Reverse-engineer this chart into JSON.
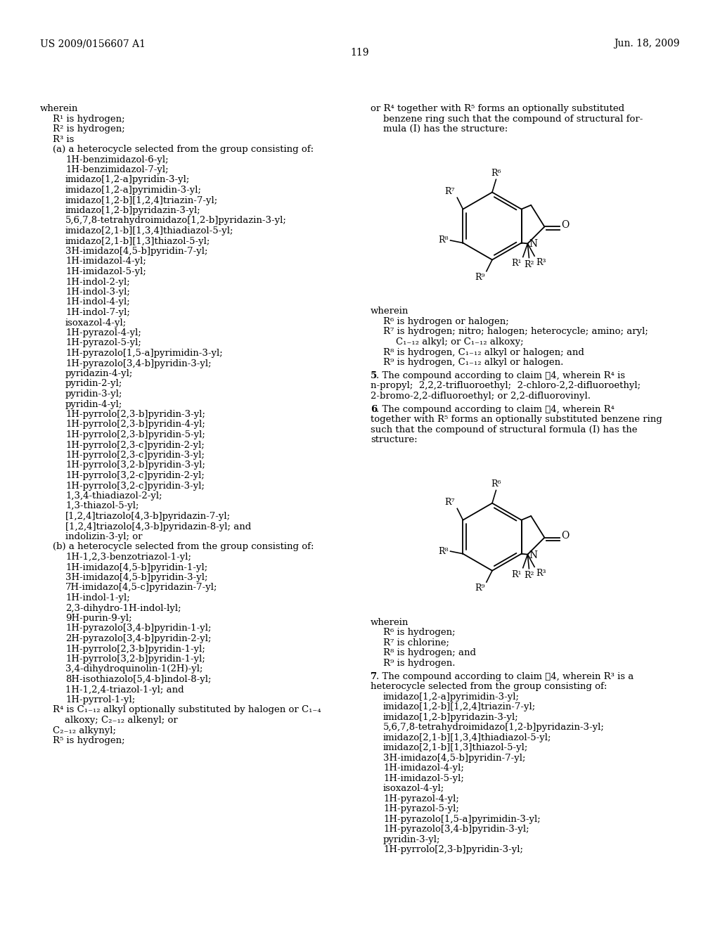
{
  "header_left": "US 2009/0156607 A1",
  "header_right": "Jun. 18, 2009",
  "page_number": "119",
  "bg_color": "#ffffff",
  "text_color": "#000000",
  "left_lines": [
    [
      "wherein",
      0
    ],
    [
      "R¹ is hydrogen;",
      1
    ],
    [
      "R² is hydrogen;",
      1
    ],
    [
      "R³ is",
      1
    ],
    [
      "(a) a heterocycle selected from the group consisting of:",
      1
    ],
    [
      "1H-benzimidazol-6-yl;",
      2
    ],
    [
      "1H-benzimidazol-7-yl;",
      2
    ],
    [
      "imidazo[1,2-a]pyridin-3-yl;",
      2
    ],
    [
      "imidazo[1,2-a]pyrimidin-3-yl;",
      2
    ],
    [
      "imidazo[1,2-b][1,2,4]triazin-7-yl;",
      2
    ],
    [
      "imidazo[1,2-b]pyridazin-3-yl;",
      2
    ],
    [
      "5,6,7,8-tetrahydroimidazo[1,2-b]pyridazin-3-yl;",
      2
    ],
    [
      "imidazo[2,1-b][1,3,4]thiadiazol-5-yl;",
      2
    ],
    [
      "imidazo[2,1-b][1,3]thiazol-5-yl;",
      2
    ],
    [
      "3H-imidazo[4,5-b]pyridin-7-yl;",
      2
    ],
    [
      "1H-imidazol-4-yl;",
      2
    ],
    [
      "1H-imidazol-5-yl;",
      2
    ],
    [
      "1H-indol-2-yl;",
      2
    ],
    [
      "1H-indol-3-yl;",
      2
    ],
    [
      "1H-indol-4-yl;",
      2
    ],
    [
      "1H-indol-7-yl;",
      2
    ],
    [
      "isoxazol-4-yl;",
      2
    ],
    [
      "1H-pyrazol-4-yl;",
      2
    ],
    [
      "1H-pyrazol-5-yl;",
      2
    ],
    [
      "1H-pyrazolo[1,5-a]pyrimidin-3-yl;",
      2
    ],
    [
      "1H-pyrazolo[3,4-b]pyridin-3-yl;",
      2
    ],
    [
      "pyridazin-4-yl;",
      2
    ],
    [
      "pyridin-2-yl;",
      2
    ],
    [
      "pyridin-3-yl;",
      2
    ],
    [
      "pyridin-4-yl;",
      2
    ],
    [
      "1H-pyrrolo[2,3-b]pyridin-3-yl;",
      2
    ],
    [
      "1H-pyrrolo[2,3-b]pyridin-4-yl;",
      2
    ],
    [
      "1H-pyrrolo[2,3-b]pyridin-5-yl;",
      2
    ],
    [
      "1H-pyrrolo[2,3-c]pyridin-2-yl;",
      2
    ],
    [
      "1H-pyrrolo[2,3-c]pyridin-3-yl;",
      2
    ],
    [
      "1H-pyrrolo[3,2-b]pyridin-3-yl;",
      2
    ],
    [
      "1H-pyrrolo[3,2-c]pyridin-2-yl;",
      2
    ],
    [
      "1H-pyrrolo[3,2-c]pyridin-3-yl;",
      2
    ],
    [
      "1,3,4-thiadiazol-2-yl;",
      2
    ],
    [
      "1,3-thiazol-5-yl;",
      2
    ],
    [
      "[1,2,4]triazolo[4,3-b]pyridazin-7-yl;",
      2
    ],
    [
      "[1,2,4]triazolo[4,3-b]pyridazin-8-yl; and",
      2
    ],
    [
      "indolizin-3-yl; or",
      2
    ],
    [
      "(b) a heterocycle selected from the group consisting of:",
      1
    ],
    [
      "1H-1,2,3-benzotriazol-1-yl;",
      2
    ],
    [
      "1H-imidazo[4,5-b]pyridin-1-yl;",
      2
    ],
    [
      "3H-imidazo[4,5-b]pyridin-3-yl;",
      2
    ],
    [
      "7H-imidazo[4,5-c]pyridazin-7-yl;",
      2
    ],
    [
      "1H-indol-1-yl;",
      2
    ],
    [
      "2,3-dihydro-1H-indol-lyl;",
      2
    ],
    [
      "9H-purin-9-yl;",
      2
    ],
    [
      "1H-pyrazolo[3,4-b]pyridin-1-yl;",
      2
    ],
    [
      "2H-pyrazolo[3,4-b]pyridin-2-yl;",
      2
    ],
    [
      "1H-pyrrolo[2,3-b]pyridin-1-yl;",
      2
    ],
    [
      "1H-pyrrolo[3,2-b]pyridin-1-yl;",
      2
    ],
    [
      "3,4-dihydroquinolin-1(2H)-yl;",
      2
    ],
    [
      "8H-isothiazolo[5,4-b]indol-8-yl;",
      2
    ],
    [
      "1H-1,2,4-triazol-1-yl; and",
      2
    ],
    [
      "1H-pyrrol-1-yl;",
      2
    ],
    [
      "R⁴ is C₁₋₁₂ alkyl optionally substituted by halogen or C₁₋₄",
      1
    ],
    [
      "    alkoxy; C₂₋₁₂ alkenyl; or",
      1
    ],
    [
      "C₂₋₁₂ alkynyl;",
      1
    ],
    [
      "R⁵ is hydrogen;",
      1
    ]
  ],
  "right_lines_intro": [
    "or R⁴ together with R⁵ forms an optionally substituted",
    "benzene ring such that the compound of structural for-",
    "mula (I) has the structure:"
  ],
  "right_wherein1": [
    "wherein",
    "R⁶ is hydrogen or halogen;",
    "R⁷ is hydrogen; nitro; halogen; heterocycle; amino; aryl;",
    "C₁₋₁₂ alkyl; or C₁₋₁₂ alkoxy;",
    "R⁸ is hydrogen, C₁₋₁₂ alkyl or halogen; and",
    "R⁹ is hydrogen, C₁₋₁₂ alkyl or halogen."
  ],
  "claim5_lines": [
    "n-propyl;  2,2,2-trifluoroethyl;  2-chloro-2,2-difluoroethyl;",
    "2-bromo-2,2-difluoroethyl; or 2,2-difluorovinyl."
  ],
  "claim6_lines": [
    "together with R⁵ forms an optionally substituted benzene ring",
    "such that the compound of structural formula (I) has the",
    "structure:"
  ],
  "right_wherein2": [
    "wherein",
    "R⁶ is hydrogen;",
    "R⁷ is chlorine;",
    "R⁸ is hydrogen; and",
    "R⁹ is hydrogen."
  ],
  "claim7_lines": [
    "heterocycle selected from the group consisting of:",
    "imidazo[1,2-a]pyrimidin-3-yl;",
    "imidazo[1,2-b][1,2,4]triazin-7-yl;",
    "imidazo[1,2-b]pyridazin-3-yl;",
    "5,6,7,8-tetrahydroimidazo[1,2-b]pyridazin-3-yl;",
    "imidazo[2,1-b][1,3,4]thiadiazol-5-yl;",
    "imidazo[2,1-b][1,3]thiazol-5-yl;",
    "3H-imidazo[4,5-b]pyridin-7-yl;",
    "1H-imidazol-4-yl;",
    "1H-imidazol-5-yl;",
    "isoxazol-4-yl;",
    "1H-pyrazol-4-yl;",
    "1H-pyrazol-5-yl;",
    "1H-pyrazolo[1,5-a]pyrimidin-3-yl;",
    "1H-pyrazolo[3,4-b]pyridin-3-yl;",
    "pyridin-3-yl;",
    "1H-pyrrolo[2,3-b]pyridin-3-yl;"
  ]
}
